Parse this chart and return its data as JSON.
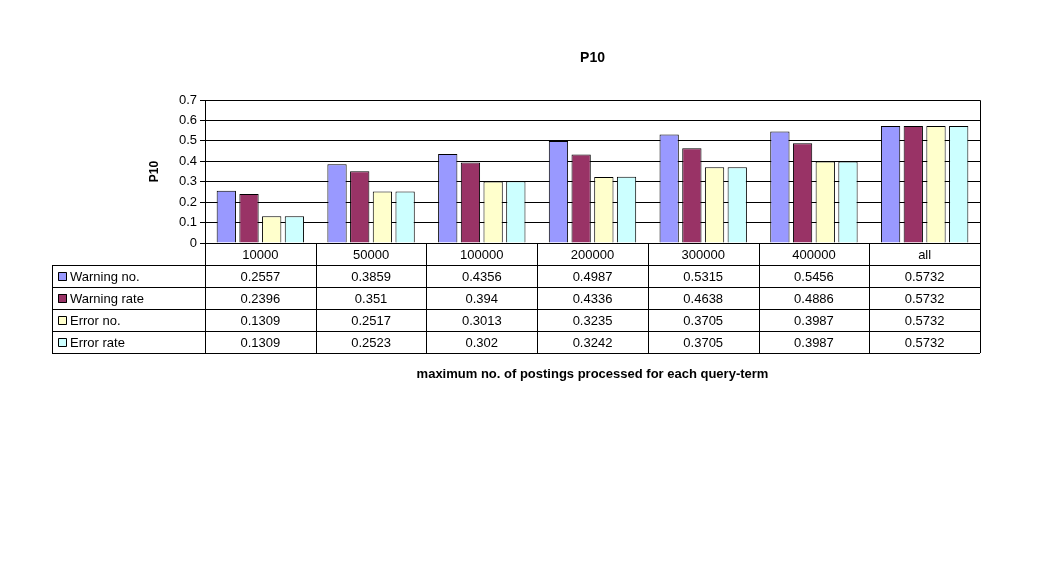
{
  "chart_data": {
    "type": "bar",
    "title": "P10",
    "annotations": [
      "maximum no. of postings processed for each query-term"
    ],
    "ylabel": "P10",
    "categories": [
      "10000",
      "50000",
      "100000",
      "200000",
      "300000",
      "400000",
      "all"
    ],
    "series": [
      {
        "name": "Warning no.",
        "color": "#9999ff",
        "values": [
          0.2557,
          0.3859,
          0.4356,
          0.4987,
          0.5315,
          0.5456,
          0.5732
        ]
      },
      {
        "name": "Warning rate",
        "color": "#993366",
        "values": [
          0.2396,
          0.351,
          0.394,
          0.4336,
          0.4638,
          0.4886,
          0.5732
        ]
      },
      {
        "name": "Error no.",
        "color": "#ffffcc",
        "values": [
          0.1309,
          0.2517,
          0.3013,
          0.3235,
          0.3705,
          0.3987,
          0.5732
        ]
      },
      {
        "name": "Error rate",
        "color": "#ccffff",
        "values": [
          0.1309,
          0.2523,
          0.302,
          0.3242,
          0.3705,
          0.3987,
          0.5732
        ]
      }
    ],
    "ylim": [
      0,
      0.7
    ],
    "yticks": [
      0,
      0.1,
      0.2,
      0.3,
      0.4,
      0.5,
      0.6,
      0.7
    ],
    "grid": "y",
    "legend": "bottom",
    "data_labels": true
  }
}
